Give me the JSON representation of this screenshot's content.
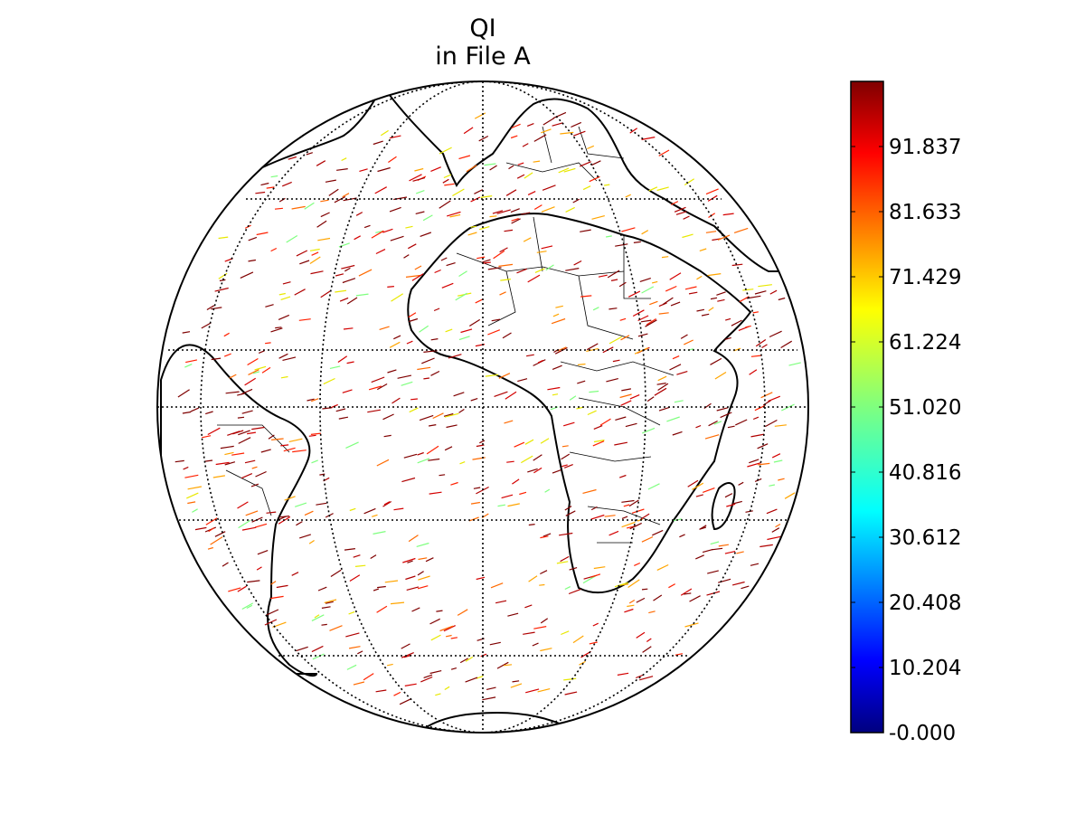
{
  "figure": {
    "title_line1": "QI",
    "title_line2": "in File A"
  },
  "colorbar": {
    "min": 0,
    "max": 102.04,
    "colormap": "jet",
    "ticks": [
      {
        "value": 0.0,
        "label": "-0.000"
      },
      {
        "value": 10.204,
        "label": "10.204"
      },
      {
        "value": 20.408,
        "label": "20.408"
      },
      {
        "value": 30.612,
        "label": "30.612"
      },
      {
        "value": 40.816,
        "label": "40.816"
      },
      {
        "value": 51.02,
        "label": "51.020"
      },
      {
        "value": 61.224,
        "label": "61.224"
      },
      {
        "value": 71.429,
        "label": "71.429"
      },
      {
        "value": 81.633,
        "label": "81.633"
      },
      {
        "value": 91.837,
        "label": "91.837"
      }
    ]
  },
  "map": {
    "projection": "orthographic",
    "center_lon": 0,
    "center_lat": 0,
    "graticule": true,
    "coastlines": true,
    "country_borders": true,
    "wind_barb_colors": [
      "#7f0000",
      "#b00000",
      "#d40000",
      "#ff2000",
      "#ff6a00",
      "#ffa500",
      "#e8e800",
      "#7fff7f"
    ]
  }
}
